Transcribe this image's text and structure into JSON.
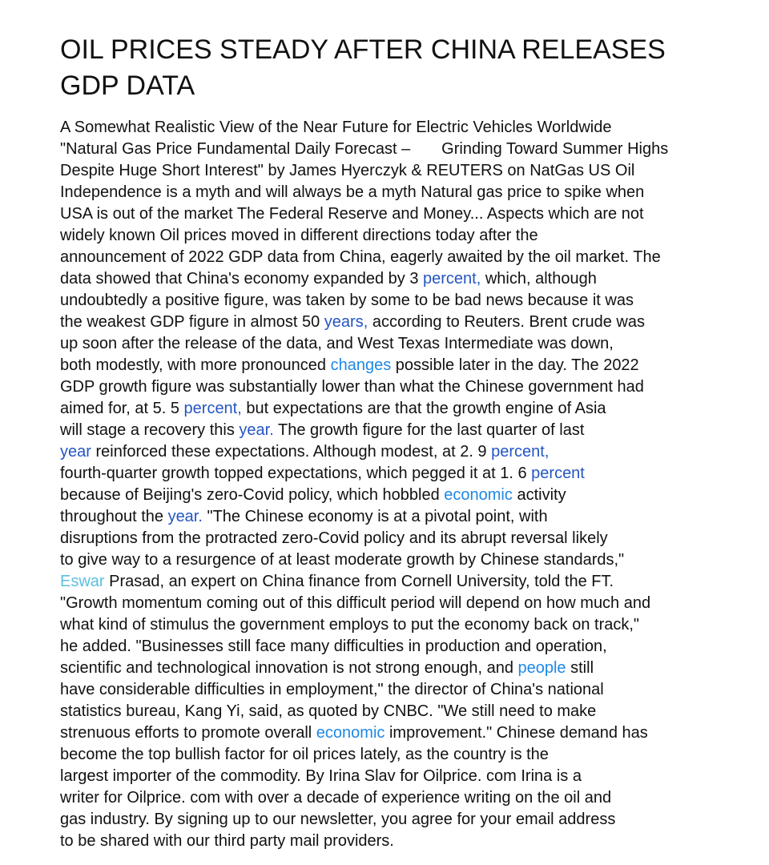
{
  "article": {
    "title_lines": [
      "OIL PRICES STEADY AFTER CHINA RELEASES",
      "GDP DATA"
    ],
    "lines": [
      [
        {
          "t": "A Somewhat Realistic View of the Near Future for Electric Vehicles Worldwide"
        }
      ],
      [
        {
          "t": "\"Natural Gas Price Fundamental Daily Forecast –       Grinding Toward Summer Highs"
        }
      ],
      [
        {
          "t": "Despite Huge Short Interest\" by James Hyerczyk & REUTERS on NatGas US Oil"
        }
      ],
      [
        {
          "t": "Independence is a myth and will always be a myth Natural gas price to spike when"
        }
      ],
      [
        {
          "t": "USA is out of the market The Federal Reserve and Money... Aspects which are not"
        }
      ],
      [
        {
          "t": "widely known Oil prices moved in different directions today after the"
        }
      ],
      [
        {
          "t": "announcement of 2022 GDP data from China, eagerly awaited by the oil market. The"
        }
      ],
      [
        {
          "t": "data showed that China's economy expanded by 3 "
        },
        {
          "t": "percent,",
          "link": "dark"
        },
        {
          "t": " which, although"
        }
      ],
      [
        {
          "t": "undoubtedly a positive figure, was taken by some to be bad news because it was"
        }
      ],
      [
        {
          "t": "the weakest GDP figure in almost 50 "
        },
        {
          "t": "years,",
          "link": "dark"
        },
        {
          "t": " according to Reuters. Brent crude was"
        }
      ],
      [
        {
          "t": "up soon after the release of the data, and West Texas Intermediate was down,"
        }
      ],
      [
        {
          "t": "both modestly, with more pronounced "
        },
        {
          "t": "changes",
          "link": "mid"
        },
        {
          "t": " possible later in the day. The 2022"
        }
      ],
      [
        {
          "t": "GDP growth figure was substantially lower than what the Chinese government had"
        }
      ],
      [
        {
          "t": "aimed for, at 5. 5 "
        },
        {
          "t": "percent,",
          "link": "dark"
        },
        {
          "t": " but expectations are that the growth engine of Asia"
        }
      ],
      [
        {
          "t": "will stage a recovery this "
        },
        {
          "t": "year.",
          "link": "dark"
        },
        {
          "t": " The growth figure for the last quarter of last"
        }
      ],
      [
        {
          "t": "year",
          "link": "dark"
        },
        {
          "t": " reinforced these expectations. Although modest, at 2. 9 "
        },
        {
          "t": "percent,",
          "link": "dark"
        }
      ],
      [
        {
          "t": "fourth-quarter growth topped expectations, which pegged it at 1. 6 "
        },
        {
          "t": "percent",
          "link": "dark"
        }
      ],
      [
        {
          "t": "because of Beijing's zero-Covid policy, which hobbled "
        },
        {
          "t": "economic",
          "link": "mid"
        },
        {
          "t": " activity"
        }
      ],
      [
        {
          "t": "throughout the "
        },
        {
          "t": "year.",
          "link": "dark"
        },
        {
          "t": " \"The Chinese economy is at a pivotal point, with"
        }
      ],
      [
        {
          "t": "disruptions from the protracted zero-Covid policy and its abrupt reversal likely"
        }
      ],
      [
        {
          "t": "to give way to a resurgence of at least moderate growth by Chinese standards,\""
        }
      ],
      [
        {
          "t": "Eswar",
          "link": "light"
        },
        {
          "t": " Prasad, an expert on China finance from Cornell University, told the FT."
        }
      ],
      [
        {
          "t": "\"Growth momentum coming out of this difficult period will depend on how much and"
        }
      ],
      [
        {
          "t": "what kind of stimulus the government employs to put the economy back on track,\""
        }
      ],
      [
        {
          "t": "he added. \"Businesses still face many difficulties in production and operation,"
        }
      ],
      [
        {
          "t": "scientific and technological innovation is not strong enough, and "
        },
        {
          "t": "people",
          "link": "mid"
        },
        {
          "t": " still"
        }
      ],
      [
        {
          "t": "have considerable difficulties in employment,\" the director of China's national"
        }
      ],
      [
        {
          "t": "statistics bureau, Kang Yi, said, as quoted by CNBC. \"We still need to make"
        }
      ],
      [
        {
          "t": "strenuous efforts to promote overall "
        },
        {
          "t": "economic",
          "link": "mid"
        },
        {
          "t": " improvement.\" Chinese demand has"
        }
      ],
      [
        {
          "t": "become the top bullish factor for oil prices lately, as the country is the"
        }
      ],
      [
        {
          "t": "largest importer of the commodity. By Irina Slav for Oilprice. com Irina is a"
        }
      ],
      [
        {
          "t": "writer for Oilprice. com with over a decade of experience writing on the oil and"
        }
      ],
      [
        {
          "t": "gas industry. By signing up to our newsletter, you agree for your email address"
        }
      ],
      [
        {
          "t": "to be shared with our third party mail providers."
        }
      ]
    ]
  },
  "colors": {
    "text": "#111111",
    "link_dark": "#2455c3",
    "link_mid": "#1e88e5",
    "link_light": "#5bc0de"
  }
}
